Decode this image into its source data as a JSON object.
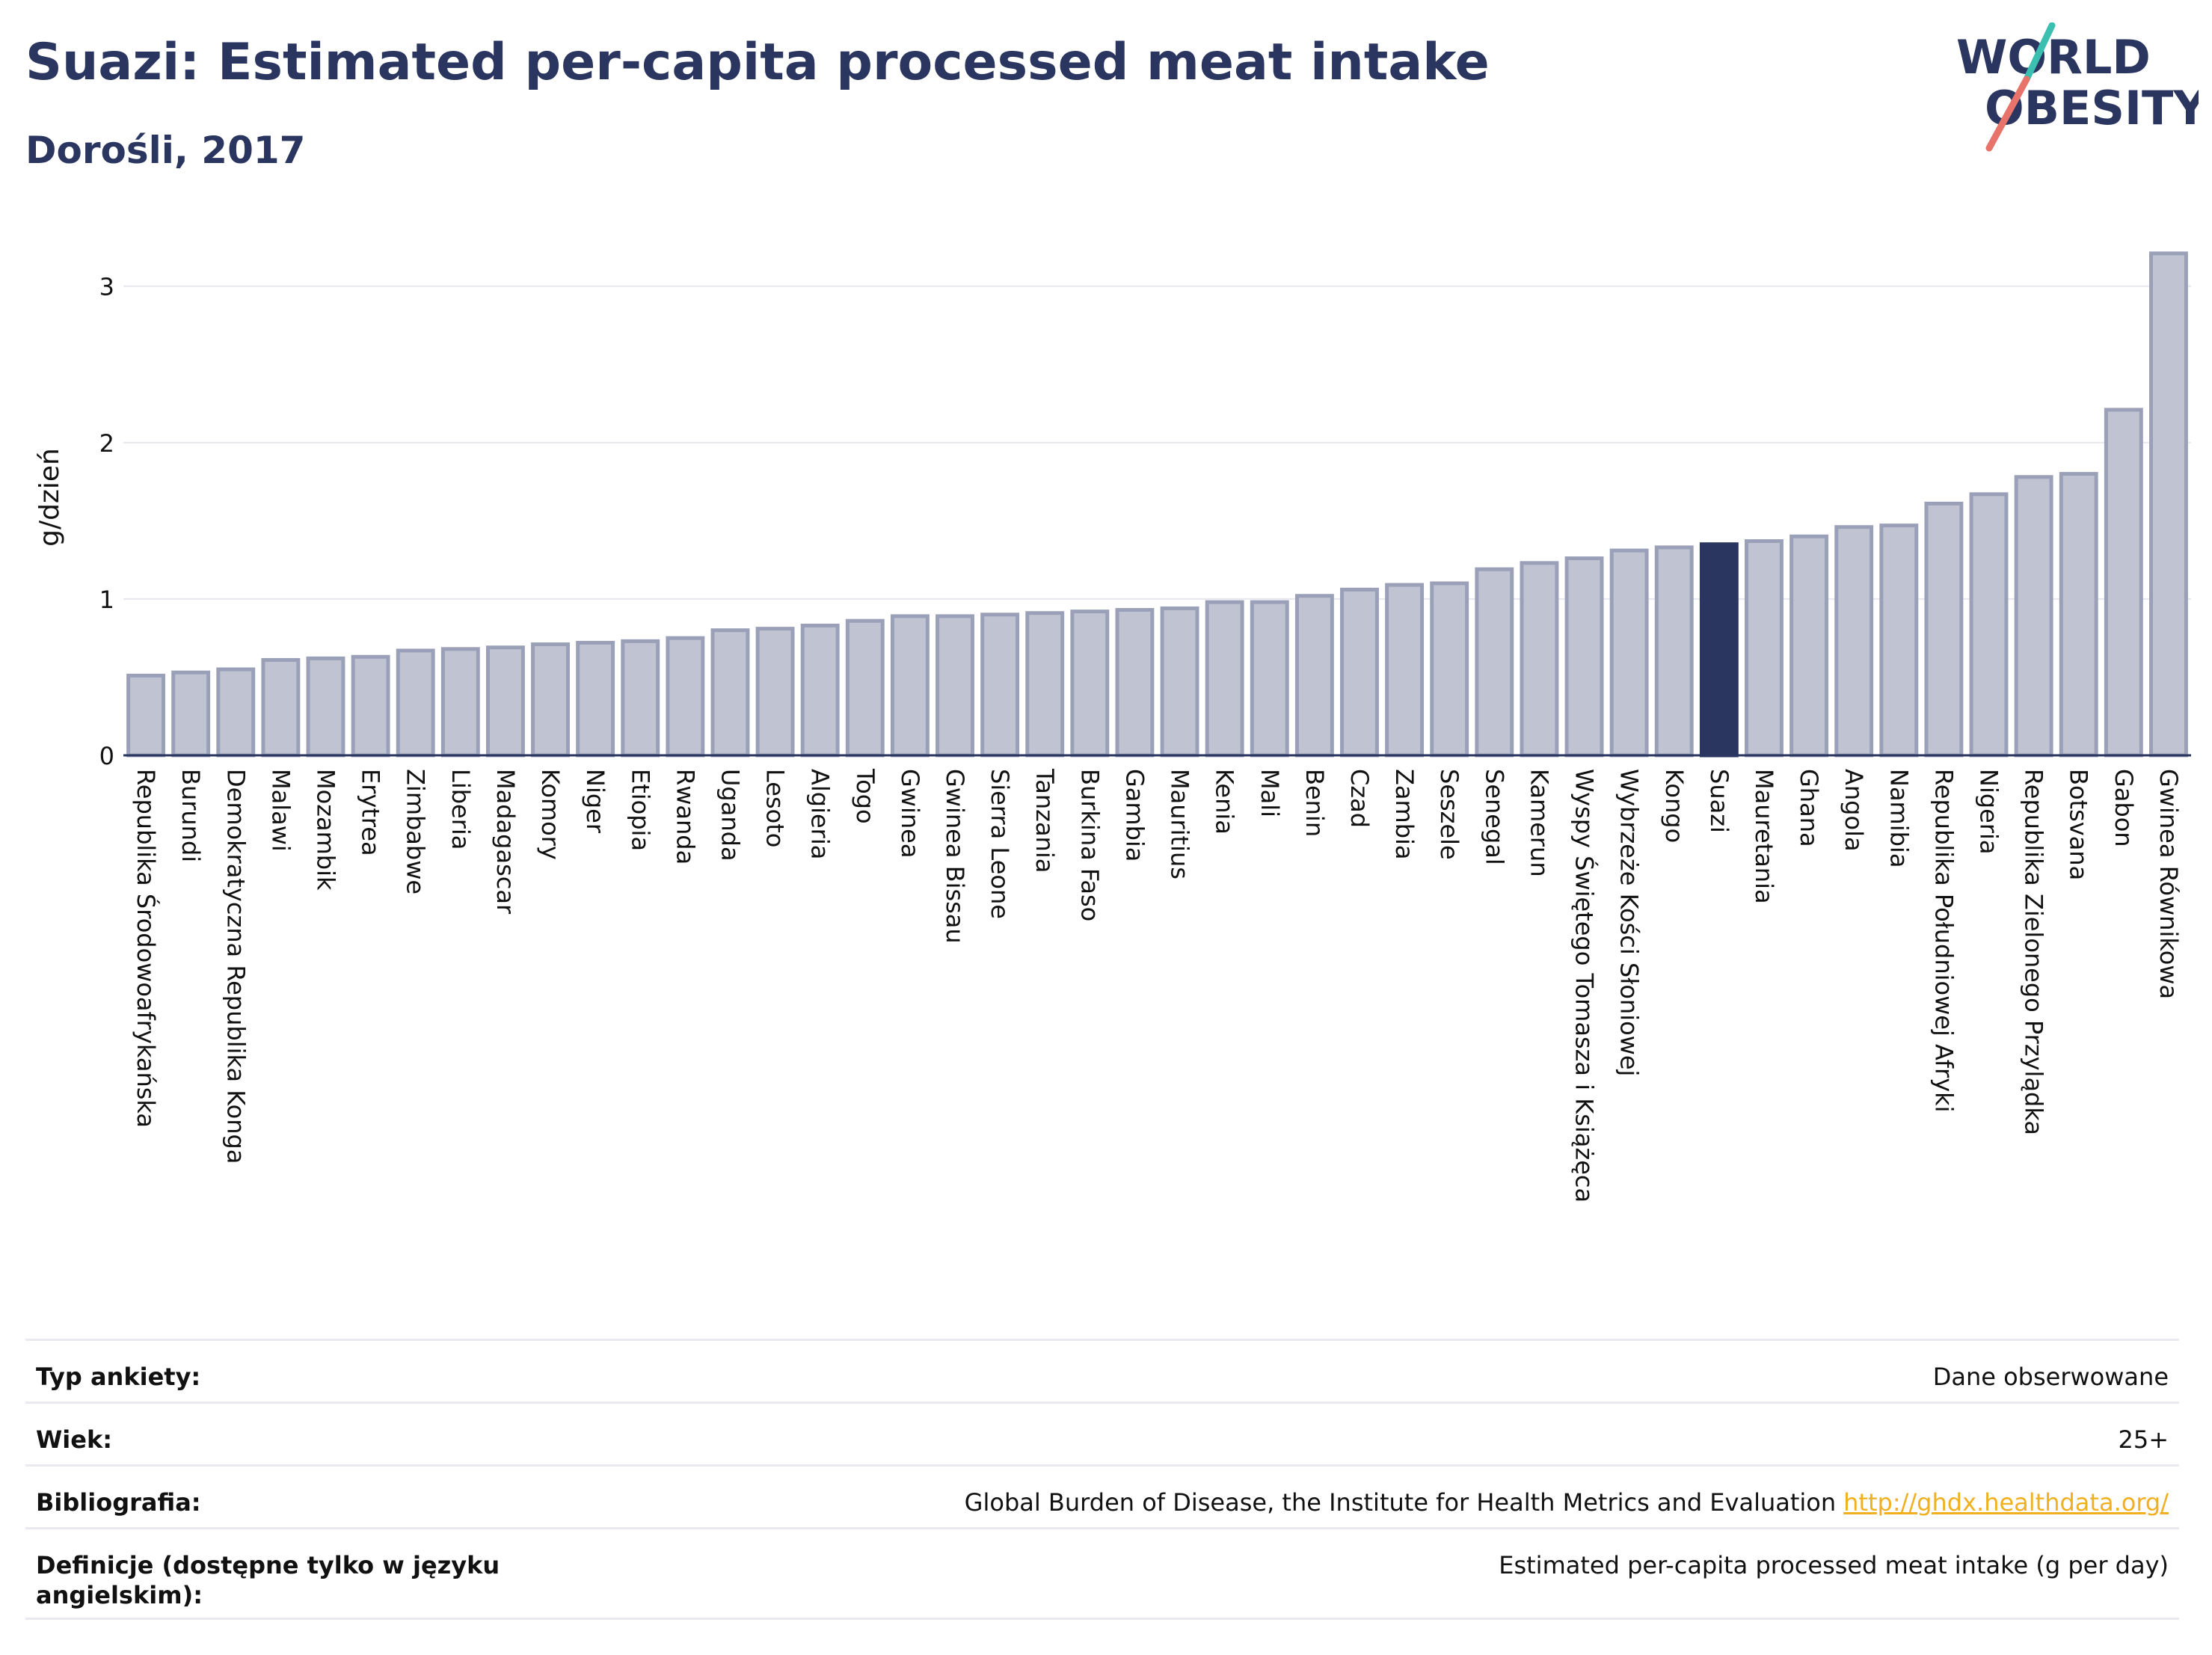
{
  "header": {
    "title": "Suazi: Estimated per-capita processed meat intake",
    "subtitle": "Dorośli, 2017",
    "logo_line1": "WORLD",
    "logo_line2": "OBESITY"
  },
  "colors": {
    "bar": "#c0c4d2",
    "bar_border": "#9aa0b8",
    "highlight": "#2a3560",
    "grid": "#e6e8ee",
    "text": "#2a3560",
    "logo_teal": "#3bbfb0",
    "logo_red": "#e8736a"
  },
  "chart_data": {
    "type": "bar",
    "title": "Suazi: Estimated per-capita processed meat intake",
    "subtitle": "Dorośli, 2017",
    "ylabel": "g/dzień",
    "xlabel": "",
    "ylim": [
      0,
      3.3
    ],
    "yticks": [
      0,
      1,
      2,
      3
    ],
    "grid": true,
    "highlight": "Suazi",
    "categories": [
      "Republika Środowoafrykańska",
      "Burundi",
      "Demokratyczna Republika Konga",
      "Malawi",
      "Mozambik",
      "Erytrea",
      "Zimbabwe",
      "Liberia",
      "Madagascar",
      "Komory",
      "Niger",
      "Etiopia",
      "Rwanda",
      "Uganda",
      "Lesoto",
      "Algieria",
      "Togo",
      "Gwinea",
      "Gwinea Bissau",
      "Sierra Leone",
      "Tanzania",
      "Burkina Faso",
      "Gambia",
      "Mauritius",
      "Kenia",
      "Mali",
      "Benin",
      "Czad",
      "Zambia",
      "Seszele",
      "Senegal",
      "Kamerun",
      "Wyspy Świętego Tomasza i Książęca",
      "Wybrzeże Kości Słoniowej",
      "Kongo",
      "Suazi",
      "Mauretania",
      "Ghana",
      "Angola",
      "Namibia",
      "Republika Południowej Afryki",
      "Nigeria",
      "Republika Zielonego Przylądka",
      "Botsvana",
      "Gabon",
      "Gwinea Równikowa"
    ],
    "values": [
      0.51,
      0.53,
      0.55,
      0.61,
      0.62,
      0.63,
      0.67,
      0.68,
      0.69,
      0.71,
      0.72,
      0.73,
      0.75,
      0.8,
      0.81,
      0.83,
      0.86,
      0.89,
      0.89,
      0.9,
      0.91,
      0.92,
      0.93,
      0.94,
      0.98,
      0.98,
      1.02,
      1.06,
      1.09,
      1.1,
      1.19,
      1.23,
      1.26,
      1.31,
      1.33,
      1.35,
      1.37,
      1.4,
      1.46,
      1.47,
      1.61,
      1.67,
      1.78,
      1.8,
      2.21,
      3.21
    ]
  },
  "info": {
    "rows": [
      {
        "label": "Typ ankiety:",
        "value": "Dane obserwowane"
      },
      {
        "label": "Wiek:",
        "value": "25+"
      },
      {
        "label": "Bibliografia:",
        "value": "Global Burden of Disease, the Institute for Health Metrics and Evaluation",
        "link": "http://ghdx.healthdata.org/"
      },
      {
        "label": "Definicje (dostępne tylko w języku angielskim):",
        "value": "Estimated per-capita processed meat intake (g per day)"
      }
    ]
  }
}
